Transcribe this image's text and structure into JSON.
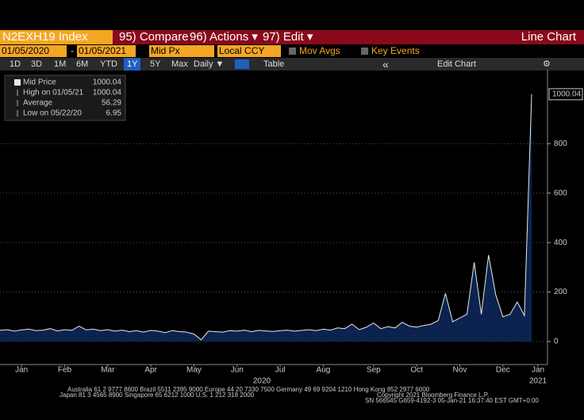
{
  "toolbar": {
    "ticker": "N2EXH19 Index",
    "compare": "95) Compare",
    "actions": "96) Actions ▾",
    "edit": "97) Edit ▾",
    "view": "Line Chart",
    "start_date": "01/05/2020",
    "date_sep": "-",
    "end_date": "01/05/2021",
    "field": "Mid Px",
    "currency": "Local CCY",
    "mov_avgs": "Mov Avgs",
    "key_events": "Key Events",
    "periods": [
      "1D",
      "3D",
      "1M",
      "6M",
      "YTD",
      "1Y",
      "5Y",
      "Max"
    ],
    "frequency": "Daily ▼",
    "table": "Table",
    "collapse": "«",
    "edit_chart": "Edit Chart",
    "settings": "⚙"
  },
  "chart_data": {
    "type": "area",
    "grid": true,
    "stats": [
      {
        "label": "Mid Price",
        "value": "1000.04"
      },
      {
        "label": "High on 01/05/21",
        "value": "1000.04"
      },
      {
        "label": "Average",
        "value": "56.29"
      },
      {
        "label": "Low on 05/22/20",
        "value": "6.95"
      }
    ],
    "categories": [
      null,
      null,
      null,
      "Jan",
      null,
      null,
      null,
      null,
      null,
      "Feb",
      null,
      null,
      null,
      null,
      null,
      "Mar",
      null,
      null,
      null,
      null,
      null,
      "Apr",
      null,
      null,
      null,
      null,
      null,
      "May",
      null,
      null,
      null,
      null,
      null,
      "Jun",
      null,
      null,
      null,
      null,
      null,
      "Jul",
      null,
      null,
      null,
      null,
      null,
      "Aug",
      null,
      null,
      null,
      null,
      null,
      null,
      "Sep",
      null,
      null,
      null,
      null,
      null,
      "Oct",
      null,
      null,
      null,
      null,
      null,
      "Nov",
      null,
      null,
      null,
      null,
      null,
      "Dec",
      null,
      null,
      null,
      "Jan"
    ],
    "year_labels": [
      "2020",
      "2021"
    ],
    "series": [
      {
        "name": "Mid Price",
        "color": "#e8e8e8",
        "fill": "#0c2350",
        "values": [
          45,
          48,
          42,
          47,
          50,
          44,
          46,
          52,
          43,
          48,
          45,
          62,
          47,
          50,
          44,
          48,
          42,
          46,
          40,
          44,
          38,
          45,
          42,
          36,
          44,
          40,
          38,
          30,
          6.95,
          42,
          40,
          38,
          44,
          42,
          46,
          40,
          45,
          43,
          41,
          44,
          46,
          42,
          45,
          48,
          44,
          50,
          46,
          55,
          52,
          70,
          48,
          58,
          75,
          52,
          60,
          55,
          78,
          62,
          58,
          65,
          70,
          85,
          195,
          80,
          95,
          110,
          320,
          110,
          350,
          190,
          100,
          110,
          160,
          105,
          1000.04
        ]
      }
    ],
    "ylim": [
      -93,
      1099
    ],
    "yticks": [
      0,
      200,
      400,
      600,
      800
    ]
  },
  "footer": {
    "line1": "Australia 61 2 9777 8600 Brazil 5511 2395 9000 Europe 44 20 7330 7500 Germany 49 69 9204 1210 Hong Kong 852 2977 6000",
    "line2": "Japan 81 3 4565 8900       Singapore 65 6212 1000       U.S. 1 212 318 2000",
    "copyright": "Copyright 2021 Bloomberg Finance L.P.",
    "session": "SN 566545 G659-4192-3 05-Jan-21 16:37:40 EST  GMT+0:00"
  }
}
